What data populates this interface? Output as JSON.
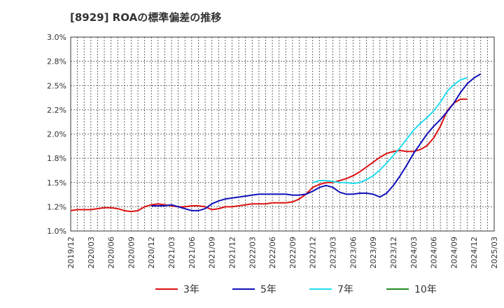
{
  "chart_data": {
    "type": "line",
    "title": "[8929]  ROAの標準偏差の推移",
    "xlabel": "",
    "ylabel": "",
    "ylim": [
      1.0,
      3.0
    ],
    "yticks": [
      "3.0%",
      "2.8%",
      "2.5%",
      "2.2%",
      "2.0%",
      "1.8%",
      "1.5%",
      "1.2%",
      "1.0%"
    ],
    "xticks": [
      "2019/12",
      "2020/03",
      "2020/06",
      "2020/09",
      "2020/12",
      "2021/03",
      "2021/06",
      "2021/09",
      "2021/12",
      "2022/03",
      "2022/06",
      "2022/09",
      "2022/12",
      "2023/03",
      "2023/06",
      "2023/09",
      "2023/12",
      "2024/03",
      "2024/06",
      "2024/09",
      "2024/12",
      "2025/03"
    ],
    "grid": true,
    "legend_position": "bottom",
    "x_start": "2019/12",
    "series": [
      {
        "name": "3年",
        "color": "#dd1111",
        "start": "2019/12",
        "values": [
          1.21,
          1.22,
          1.22,
          1.22,
          1.23,
          1.24,
          1.24,
          1.23,
          1.21,
          1.2,
          1.21,
          1.25,
          1.27,
          1.28,
          1.27,
          1.26,
          1.25,
          1.25,
          1.26,
          1.26,
          1.25,
          1.22,
          1.23,
          1.25,
          1.25,
          1.26,
          1.27,
          1.28,
          1.28,
          1.28,
          1.29,
          1.29,
          1.29,
          1.3,
          1.33,
          1.38,
          1.45,
          1.48,
          1.5,
          1.5,
          1.52,
          1.54,
          1.57,
          1.61,
          1.66,
          1.71,
          1.76,
          1.8,
          1.82,
          1.83,
          1.82,
          1.82,
          1.84,
          1.88,
          1.96,
          2.08,
          2.24,
          2.32,
          2.36,
          2.36
        ]
      },
      {
        "name": "5年",
        "color": "#1111bb",
        "start": "2020/12",
        "values": [
          1.26,
          1.26,
          1.26,
          1.27,
          1.25,
          1.23,
          1.21,
          1.21,
          1.23,
          1.28,
          1.31,
          1.33,
          1.34,
          1.35,
          1.36,
          1.37,
          1.38,
          1.38,
          1.38,
          1.38,
          1.38,
          1.37,
          1.37,
          1.38,
          1.41,
          1.45,
          1.47,
          1.45,
          1.4,
          1.38,
          1.38,
          1.39,
          1.39,
          1.38,
          1.35,
          1.39,
          1.47,
          1.57,
          1.68,
          1.8,
          1.9,
          2.0,
          2.08,
          2.15,
          2.23,
          2.32,
          2.43,
          2.52,
          2.58,
          2.62
        ]
      },
      {
        "name": "7年",
        "color": "#22ddee",
        "start": "2022/12",
        "values": [
          1.5,
          1.52,
          1.52,
          1.51,
          1.5,
          1.5,
          1.49,
          1.5,
          1.53,
          1.57,
          1.63,
          1.7,
          1.78,
          1.86,
          1.95,
          2.04,
          2.11,
          2.17,
          2.24,
          2.33,
          2.44,
          2.51,
          2.56,
          2.58
        ]
      },
      {
        "name": "10年",
        "color": "#228822",
        "start": "",
        "values": []
      }
    ]
  }
}
